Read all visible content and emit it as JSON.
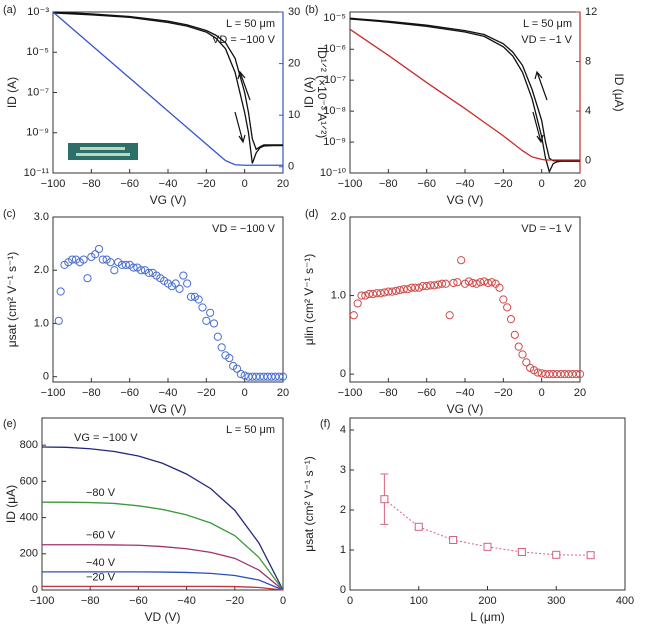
{
  "chart_data": [
    {
      "type": "line",
      "panel_label": "(a)",
      "xlabel": "VG (V)",
      "ylabel": "ID (A)",
      "y2label": "ID¹ᐟ² (×10⁻³ A¹ᐟ²)",
      "annotations": [
        {
          "text": "L = 50 μm",
          "color": "#111111"
        },
        {
          "text": "VD = −100 V",
          "color": "#3355cc"
        }
      ],
      "x": [
        -100,
        -80,
        -60,
        -40,
        -30,
        -20,
        -15,
        -10,
        -5,
        0,
        2,
        4,
        6,
        8,
        10,
        15,
        20
      ],
      "xlim": [
        -100,
        20
      ],
      "xticks": [
        {
          "value": -100,
          "label": "−100"
        },
        {
          "value": -80,
          "label": "−80"
        },
        {
          "value": -60,
          "label": "−60"
        },
        {
          "value": -40,
          "label": "−40"
        },
        {
          "value": -20,
          "label": "−20"
        },
        0,
        20
      ],
      "ylog": true,
      "ylim": [
        1e-11,
        0.001
      ],
      "yticks": [
        {
          "value": 1e-11,
          "label": "10⁻¹¹"
        },
        {
          "value": 1e-09,
          "label": "10⁻⁹"
        },
        {
          "value": 1e-07,
          "label": "10⁻⁷"
        },
        {
          "value": 1e-05,
          "label": "10⁻⁵"
        },
        {
          "value": 0.001,
          "label": "10⁻³"
        }
      ],
      "y2lim": [
        -1.2,
        30
      ],
      "y2ticks": [
        0,
        10,
        20,
        30
      ],
      "y2color": "#3355cc",
      "series": [
        {
          "color": "#111111",
          "values": [
            0.001,
            0.0008,
            0.0006,
            0.00035,
            0.00023,
            0.00012,
            7e-05,
            3e-05,
            5e-06,
            1e-07,
            1e-08,
            5e-10,
            1.5e-10,
            2e-10,
            2.5e-10,
            2.5e-10,
            2.5e-10
          ]
        },
        {
          "color": "#111111",
          "values": [
            0.0009,
            0.00072,
            0.00054,
            0.0003,
            0.0002,
            0.0001,
            5e-05,
            1.5e-05,
            1e-06,
            1e-08,
            1e-09,
            3e-11,
            1e-10,
            1.8e-10,
            2.2e-10,
            2.3e-10,
            2.3e-10
          ]
        },
        {
          "color": "#3355cc",
          "axis": "y2",
          "values": [
            30,
            23.6,
            17.2,
            10.8,
            7.6,
            4.4,
            2.8,
            1.2,
            0.4,
            0.3,
            0.3,
            0.3,
            0.3,
            0.3,
            0.3,
            0.3,
            0.3
          ]
        }
      ]
    },
    {
      "type": "line",
      "panel_label": "(b)",
      "xlabel": "VG (V)",
      "ylabel": "ID (A)",
      "y2label": "ID (μA)",
      "annotations": [
        {
          "text": "L = 50 μm",
          "color": "#111111"
        },
        {
          "text": "VD = −1 V",
          "color": "#cc2a2a"
        }
      ],
      "x": [
        -100,
        -80,
        -60,
        -40,
        -30,
        -20,
        -15,
        -10,
        -5,
        0,
        2,
        4,
        6,
        8,
        10,
        15,
        20
      ],
      "xlim": [
        -100,
        20
      ],
      "xticks": [
        {
          "value": -100,
          "label": "−100"
        },
        {
          "value": -80,
          "label": "−80"
        },
        {
          "value": -60,
          "label": "−60"
        },
        {
          "value": -40,
          "label": "−40"
        },
        {
          "value": -20,
          "label": "−20"
        },
        0,
        20
      ],
      "ylog": true,
      "ylim": [
        1e-10,
        1.6e-05
      ],
      "yticks": [
        {
          "value": 1e-10,
          "label": "10⁻¹⁰"
        },
        {
          "value": 1e-09,
          "label": "10⁻⁹"
        },
        {
          "value": 1e-08,
          "label": "10⁻⁸"
        },
        {
          "value": 1e-07,
          "label": "10⁻⁷"
        },
        {
          "value": 1e-06,
          "label": "10⁻⁶"
        },
        {
          "value": 1e-05,
          "label": "10⁻⁵"
        }
      ],
      "y2lim": [
        -1,
        12
      ],
      "y2ticks": [
        0,
        4,
        8,
        12
      ],
      "y2color": "#cc2a2a",
      "series": [
        {
          "color": "#111111",
          "values": [
            1e-05,
            8e-06,
            6e-06,
            4e-06,
            3e-06,
            1.5e-06,
            8e-07,
            3e-07,
            5e-08,
            5e-09,
            1e-09,
            3e-10,
            2.5e-10,
            2.5e-10,
            2.5e-10,
            2.5e-10,
            2.5e-10
          ]
        },
        {
          "color": "#111111",
          "values": [
            9.5e-06,
            7.5e-06,
            5.5e-06,
            3.6e-06,
            2.6e-06,
            1.2e-06,
            6e-07,
            1.8e-07,
            2.5e-08,
            1.5e-09,
            3e-10,
            1.1e-10,
            2e-10,
            2.3e-10,
            2.4e-10,
            2.4e-10,
            2.4e-10
          ]
        },
        {
          "color": "#cc2a2a",
          "axis": "y2",
          "values": [
            10.6,
            8.5,
            6.3,
            4.2,
            3.1,
            2.0,
            1.4,
            0.8,
            0.3,
            0.1,
            0.05,
            0.05,
            0.05,
            0.05,
            0.05,
            0.05,
            0.05
          ]
        }
      ]
    },
    {
      "type": "scatter",
      "panel_label": "(c)",
      "xlabel": "VG (V)",
      "ylabel": "μsat (cm² V⁻¹ s⁻¹)",
      "annotations": [
        {
          "text": "VD = −100 V",
          "color": "#3355cc"
        }
      ],
      "xlim": [
        -100,
        20
      ],
      "xticks": [
        {
          "value": -100,
          "label": "−100"
        },
        {
          "value": -80,
          "label": "−80"
        },
        {
          "value": -60,
          "label": "−60"
        },
        {
          "value": -40,
          "label": "−40"
        },
        {
          "value": -20,
          "label": "−20"
        },
        0,
        20
      ],
      "ylim": [
        -0.1,
        3.0
      ],
      "yticks": [
        0,
        {
          "value": 1,
          "label": "1.0"
        },
        {
          "value": 2,
          "label": "2.0"
        },
        {
          "value": 3,
          "label": "3.0"
        }
      ],
      "color": "#4a6fd0",
      "x": [
        -97,
        -96,
        -94,
        -92,
        -90,
        -88,
        -86,
        -84,
        -82,
        -80,
        -78,
        -76,
        -74,
        -72,
        -70,
        -68,
        -66,
        -64,
        -62,
        -60,
        -58,
        -56,
        -54,
        -52,
        -50,
        -48,
        -46,
        -44,
        -42,
        -40,
        -38,
        -36,
        -34,
        -32,
        -30,
        -28,
        -26,
        -24,
        -22,
        -20,
        -18,
        -16,
        -14,
        -12,
        -10,
        -8,
        -6,
        -4,
        -2,
        0,
        2,
        4,
        6,
        8,
        10,
        12,
        14,
        16,
        18,
        20
      ],
      "values": [
        1.05,
        1.6,
        2.1,
        2.15,
        2.2,
        2.2,
        2.15,
        2.2,
        1.85,
        2.25,
        2.3,
        2.4,
        2.2,
        2.2,
        2.15,
        2.0,
        2.15,
        2.1,
        2.1,
        2.1,
        2.05,
        2.05,
        2.0,
        2.0,
        1.95,
        1.95,
        1.9,
        1.85,
        1.8,
        1.75,
        1.7,
        1.75,
        1.65,
        1.9,
        1.75,
        1.5,
        1.5,
        1.45,
        1.3,
        1.05,
        1.2,
        1.0,
        0.75,
        0.55,
        0.4,
        0.35,
        0.2,
        0.15,
        0.05,
        0.02,
        0,
        0,
        0,
        0,
        0,
        0,
        0,
        0,
        0,
        0
      ]
    },
    {
      "type": "scatter",
      "panel_label": "(d)",
      "xlabel": "VG (V)",
      "ylabel": "μlin (cm² V⁻¹ s⁻¹)",
      "annotations": [
        {
          "text": "VD = −1 V",
          "color": "#cc2a2a"
        }
      ],
      "xlim": [
        -100,
        20
      ],
      "xticks": [
        {
          "value": -100,
          "label": "−100"
        },
        {
          "value": -80,
          "label": "−80"
        },
        {
          "value": -60,
          "label": "−60"
        },
        {
          "value": -40,
          "label": "−40"
        },
        {
          "value": -20,
          "label": "−20"
        },
        0,
        20
      ],
      "ylim": [
        -0.1,
        2.0
      ],
      "yticks": [
        0,
        {
          "value": 1,
          "label": "1.0"
        },
        {
          "value": 2,
          "label": "2.0"
        }
      ],
      "color": "#d04a4a",
      "x": [
        -98,
        -96,
        -94,
        -92,
        -90,
        -88,
        -86,
        -84,
        -82,
        -80,
        -78,
        -76,
        -74,
        -72,
        -70,
        -68,
        -66,
        -64,
        -62,
        -60,
        -58,
        -56,
        -54,
        -52,
        -50,
        -48,
        -46,
        -44,
        -42,
        -40,
        -38,
        -36,
        -34,
        -32,
        -30,
        -28,
        -26,
        -24,
        -22,
        -20,
        -18,
        -16,
        -14,
        -12,
        -10,
        -8,
        -6,
        -4,
        -2,
        0,
        2,
        4,
        6,
        8,
        10,
        12,
        14,
        16,
        18,
        20
      ],
      "values": [
        0.75,
        0.9,
        1.0,
        1.0,
        1.02,
        1.02,
        1.03,
        1.03,
        1.04,
        1.05,
        1.05,
        1.06,
        1.07,
        1.08,
        1.08,
        1.1,
        1.1,
        1.1,
        1.12,
        1.12,
        1.13,
        1.13,
        1.14,
        1.15,
        1.15,
        0.75,
        1.16,
        1.17,
        1.45,
        1.15,
        1.18,
        1.16,
        1.15,
        1.17,
        1.18,
        1.16,
        1.17,
        1.15,
        1.1,
        0.95,
        0.85,
        0.7,
        0.5,
        0.35,
        0.25,
        0.15,
        0.08,
        0.05,
        0.02,
        0.01,
        0,
        0,
        0,
        0,
        0,
        0,
        0,
        0,
        0,
        0
      ]
    },
    {
      "type": "line",
      "panel_label": "(e)",
      "xlabel": "VD (V)",
      "ylabel": "ID (μA)",
      "annotations": [
        {
          "text": "L = 50 μm",
          "color": "#111111"
        }
      ],
      "x": [
        -100,
        -90,
        -80,
        -70,
        -60,
        -50,
        -40,
        -30,
        -20,
        -10,
        0
      ],
      "xlim": [
        -100,
        0
      ],
      "xticks": [
        {
          "value": -100,
          "label": "−100"
        },
        {
          "value": -80,
          "label": "−80"
        },
        {
          "value": -60,
          "label": "−60"
        },
        {
          "value": -40,
          "label": "−40"
        },
        {
          "value": -20,
          "label": "−20"
        },
        0
      ],
      "ylim": [
        0,
        950
      ],
      "yticks": [
        0,
        200,
        400,
        600,
        800
      ],
      "series": [
        {
          "name": "VG = −100 V",
          "color": "#1f2a7a",
          "values": [
            790,
            788,
            780,
            765,
            740,
            700,
            640,
            560,
            440,
            260,
            0
          ]
        },
        {
          "name": "−80 V",
          "color": "#3a9a3a",
          "values": [
            485,
            485,
            483,
            478,
            465,
            445,
            415,
            370,
            300,
            180,
            0
          ]
        },
        {
          "name": "−60 V",
          "color": "#a0336e",
          "values": [
            250,
            250,
            250,
            249,
            247,
            240,
            228,
            208,
            175,
            110,
            0
          ]
        },
        {
          "name": "−40 V",
          "color": "#2e4fbf",
          "values": [
            100,
            100,
            100,
            100,
            100,
            99,
            97,
            92,
            80,
            55,
            0
          ]
        },
        {
          "name": "−20 V",
          "color": "#c8313a",
          "values": [
            20,
            20,
            20,
            20,
            20,
            20,
            20,
            20,
            19,
            14,
            0
          ]
        }
      ]
    },
    {
      "type": "errorbar",
      "panel_label": "(f)",
      "xlabel": "L (μm)",
      "ylabel": "μsat (cm² V⁻¹ s⁻¹)",
      "xlim": [
        0,
        400
      ],
      "xticks": [
        0,
        100,
        200,
        300,
        400
      ],
      "ylim": [
        0,
        4.3
      ],
      "yticks": [
        0,
        1,
        2,
        3,
        4
      ],
      "color": "#d8607f",
      "x": [
        50,
        100,
        150,
        200,
        250,
        300,
        350
      ],
      "values": [
        2.27,
        1.58,
        1.25,
        1.08,
        0.95,
        0.88,
        0.87
      ],
      "errors": [
        0.63,
        0.07,
        0.06,
        0.07,
        0.06,
        0.05,
        0.06
      ]
    }
  ]
}
